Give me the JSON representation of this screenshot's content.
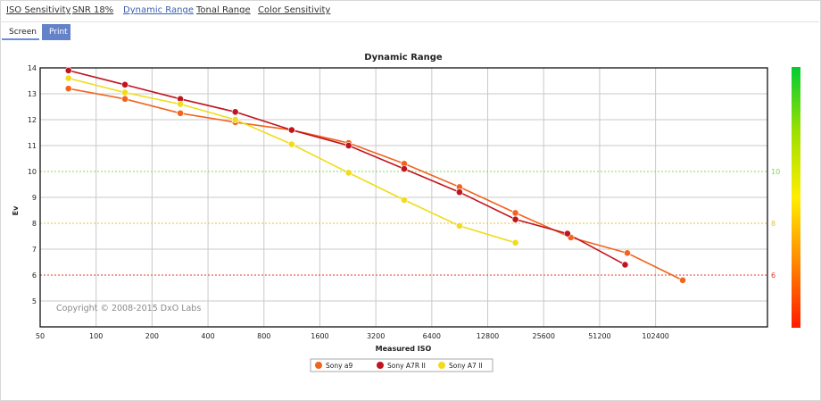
{
  "tabs": [
    {
      "label": "ISO Sensitivity",
      "active": false
    },
    {
      "label": "SNR 18%",
      "active": false
    },
    {
      "label": "Dynamic Range",
      "active": true
    },
    {
      "label": "Tonal Range",
      "active": false
    },
    {
      "label": "Color Sensitivity",
      "active": false
    }
  ],
  "subtabs": {
    "screen": "Screen",
    "print": "Print"
  },
  "chart_data": {
    "type": "line",
    "title": "Dynamic Range",
    "xlabel": "Measured ISO",
    "ylabel": "Ev",
    "x_scale": "log",
    "xlim": [
      50,
      409600
    ],
    "ylim": [
      4,
      14
    ],
    "x_ticks": [
      50,
      100,
      200,
      400,
      800,
      1600,
      3200,
      6400,
      12800,
      25600,
      51200,
      102400
    ],
    "y_ticks": [
      5,
      6,
      7,
      8,
      9,
      10,
      11,
      12,
      13,
      14
    ],
    "grid": true,
    "copyright": "Copyright © 2008-2015 DxO Labs",
    "reference_lines": [
      {
        "value": 10,
        "label": "10",
        "color": "#7ddc4a",
        "style": "dotted"
      },
      {
        "value": 8,
        "label": "8",
        "color": "#e8c23a",
        "style": "dotted"
      },
      {
        "value": 6,
        "label": "6",
        "color": "#e23a2a",
        "style": "dotted"
      }
    ],
    "color_scale": {
      "colors": [
        "#00cc33",
        "#9ee000",
        "#ffee00",
        "#ff8800",
        "#ff1a00"
      ]
    },
    "legend_position": "bottom-center",
    "series": [
      {
        "name": "Sony a9",
        "color": "#f2641e",
        "x": [
          71,
          143,
          284,
          561,
          1128,
          2284,
          4549,
          9021,
          18042,
          35845,
          72164,
          143320
        ],
        "y": [
          13.2,
          12.8,
          12.25,
          11.9,
          11.6,
          11.1,
          10.3,
          9.4,
          8.4,
          7.45,
          6.85,
          5.8
        ]
      },
      {
        "name": "Sony A7R II",
        "color": "#c0141e",
        "x": [
          71,
          143,
          284,
          561,
          1128,
          2284,
          4549,
          9021,
          18042,
          34359,
          70196
        ],
        "y": [
          13.9,
          13.35,
          12.8,
          12.3,
          11.6,
          11.0,
          10.1,
          9.2,
          8.15,
          7.6,
          6.4
        ]
      },
      {
        "name": "Sony A7 II",
        "color": "#f0dc1c",
        "x": [
          71,
          143,
          284,
          561,
          1128,
          2284,
          4549,
          9021,
          18042
        ],
        "y": [
          13.6,
          13.05,
          12.6,
          12.0,
          11.05,
          9.95,
          8.9,
          7.9,
          7.25
        ]
      }
    ]
  }
}
